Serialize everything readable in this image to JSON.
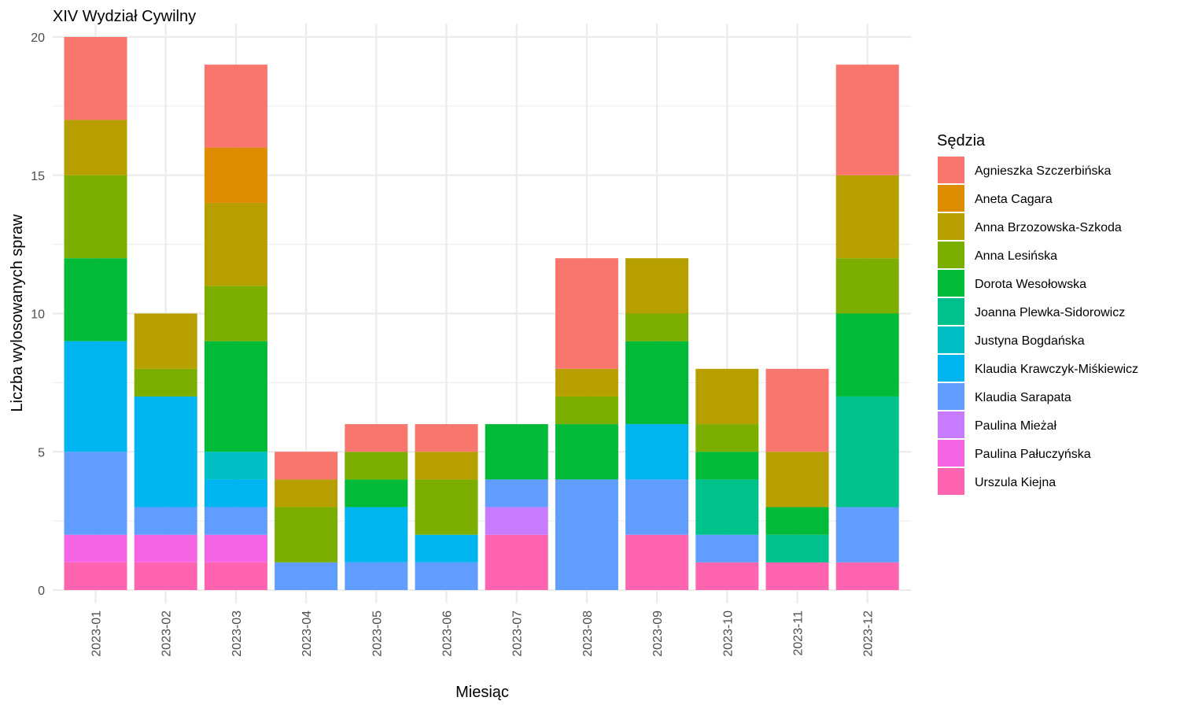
{
  "chart_data": {
    "type": "bar",
    "stacked": true,
    "title": "XIV Wydział Cywilny",
    "xlabel": "Miesiąc",
    "ylabel": "Liczba wylosowanych spraw",
    "ylim": [
      0,
      21
    ],
    "yticks": [
      0,
      5,
      10,
      15,
      20
    ],
    "grid": true,
    "legend_position": "right",
    "legend_title": "Sędzia",
    "categories": [
      "2023-01",
      "2023-02",
      "2023-03",
      "2023-04",
      "2023-05",
      "2023-06",
      "2023-07",
      "2023-08",
      "2023-09",
      "2023-10",
      "2023-11",
      "2023-12"
    ],
    "series": [
      {
        "name": "Agnieszka Szczerbińska",
        "color": "#F8766D",
        "values": [
          3,
          0,
          3,
          1,
          1,
          1,
          0,
          4,
          0,
          0,
          3,
          4
        ]
      },
      {
        "name": "Aneta Cagara",
        "color": "#DE8C00",
        "values": [
          0,
          0,
          2,
          0,
          0,
          0,
          0,
          0,
          0,
          0,
          0,
          0
        ]
      },
      {
        "name": "Anna Brzozowska-Szkoda",
        "color": "#B79F00",
        "values": [
          2,
          2,
          3,
          1,
          0,
          1,
          0,
          1,
          2,
          2,
          2,
          3
        ]
      },
      {
        "name": "Anna Lesińska",
        "color": "#7CAE00",
        "values": [
          3,
          1,
          2,
          2,
          1,
          2,
          0,
          1,
          1,
          1,
          0,
          2
        ]
      },
      {
        "name": "Dorota Wesołowska",
        "color": "#00BA38",
        "values": [
          3,
          0,
          4,
          0,
          1,
          0,
          2,
          2,
          3,
          1,
          1,
          3
        ]
      },
      {
        "name": "Joanna Plewka-Sidorowicz",
        "color": "#00C08B",
        "values": [
          0,
          0,
          0,
          0,
          0,
          0,
          0,
          0,
          0,
          2,
          1,
          4
        ]
      },
      {
        "name": "Justyna Bogdańska",
        "color": "#00BFC4",
        "values": [
          0,
          0,
          1,
          0,
          0,
          0,
          0,
          0,
          0,
          0,
          0,
          0
        ]
      },
      {
        "name": "Klaudia Krawczyk-Miśkiewicz",
        "color": "#00B4F0",
        "values": [
          4,
          4,
          1,
          0,
          2,
          1,
          0,
          0,
          2,
          0,
          0,
          0
        ]
      },
      {
        "name": "Klaudia Sarapata",
        "color": "#619CFF",
        "values": [
          3,
          1,
          1,
          1,
          1,
          1,
          1,
          4,
          2,
          1,
          0,
          2
        ]
      },
      {
        "name": "Paulina Mieżał",
        "color": "#C77CFF",
        "values": [
          0,
          0,
          0,
          0,
          0,
          0,
          1,
          0,
          0,
          0,
          0,
          0
        ]
      },
      {
        "name": "Paulina Pałuczyńska",
        "color": "#F564E3",
        "values": [
          1,
          1,
          1,
          0,
          0,
          0,
          0,
          0,
          0,
          0,
          0,
          0
        ]
      },
      {
        "name": "Urszula Kiejna",
        "color": "#FF64B0",
        "values": [
          1,
          1,
          1,
          0,
          0,
          0,
          2,
          0,
          2,
          1,
          1,
          1
        ]
      }
    ]
  }
}
